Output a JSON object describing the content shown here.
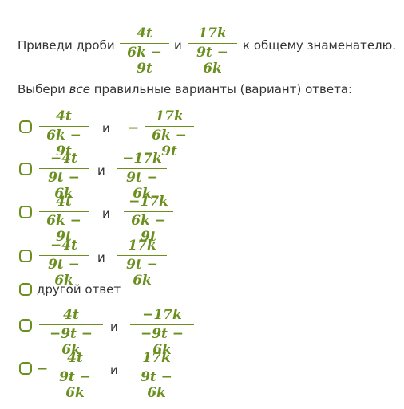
{
  "question": {
    "prefix": "Приведи дроби",
    "and": "и",
    "suffix": "к общему знаменателю.",
    "frac1": {
      "num": "4t",
      "den": "6k − 9t"
    },
    "frac2": {
      "num": "17k",
      "den": "9t − 6k"
    }
  },
  "instruction": {
    "before": "Выбери ",
    "emph": "все",
    "after": " правильные варианты (вариант) ответа:"
  },
  "options": [
    {
      "sign1": "",
      "f1": {
        "num": "4t",
        "den": "6k − 9t"
      },
      "and": "и",
      "sign2": "−",
      "f2": {
        "num": "17k",
        "den": "6k − 9t"
      }
    },
    {
      "sign1": "",
      "f1": {
        "num": "−4t",
        "den": "9t − 6k"
      },
      "and": "и",
      "sign2": "",
      "f2": {
        "num": "−17k",
        "den": "9t − 6k"
      }
    },
    {
      "sign1": "",
      "f1": {
        "num": "4t",
        "den": "6k − 9t"
      },
      "and": "и",
      "sign2": "",
      "f2": {
        "num": "−17k",
        "den": "6k − 9t"
      }
    },
    {
      "sign1": "",
      "f1": {
        "num": "−4t",
        "den": "9t − 6k"
      },
      "and": "и",
      "sign2": "",
      "f2": {
        "num": "17k",
        "den": "9t − 6k"
      }
    },
    {
      "text": "другой ответ"
    },
    {
      "sign1": "",
      "f1": {
        "num": "4t",
        "den": "−9t − 6k"
      },
      "and": "и",
      "sign2": "",
      "f2": {
        "num": "−17k",
        "den": "−9t − 6k"
      }
    },
    {
      "sign1": "−",
      "f1": {
        "num": "4t",
        "den": "9t − 6k"
      },
      "and": "и",
      "sign2": "",
      "f2": {
        "num": "17k",
        "den": "9t − 6k"
      }
    }
  ],
  "colors": {
    "accent": "#6a8f1e",
    "text": "#333333",
    "background": "#ffffff"
  }
}
